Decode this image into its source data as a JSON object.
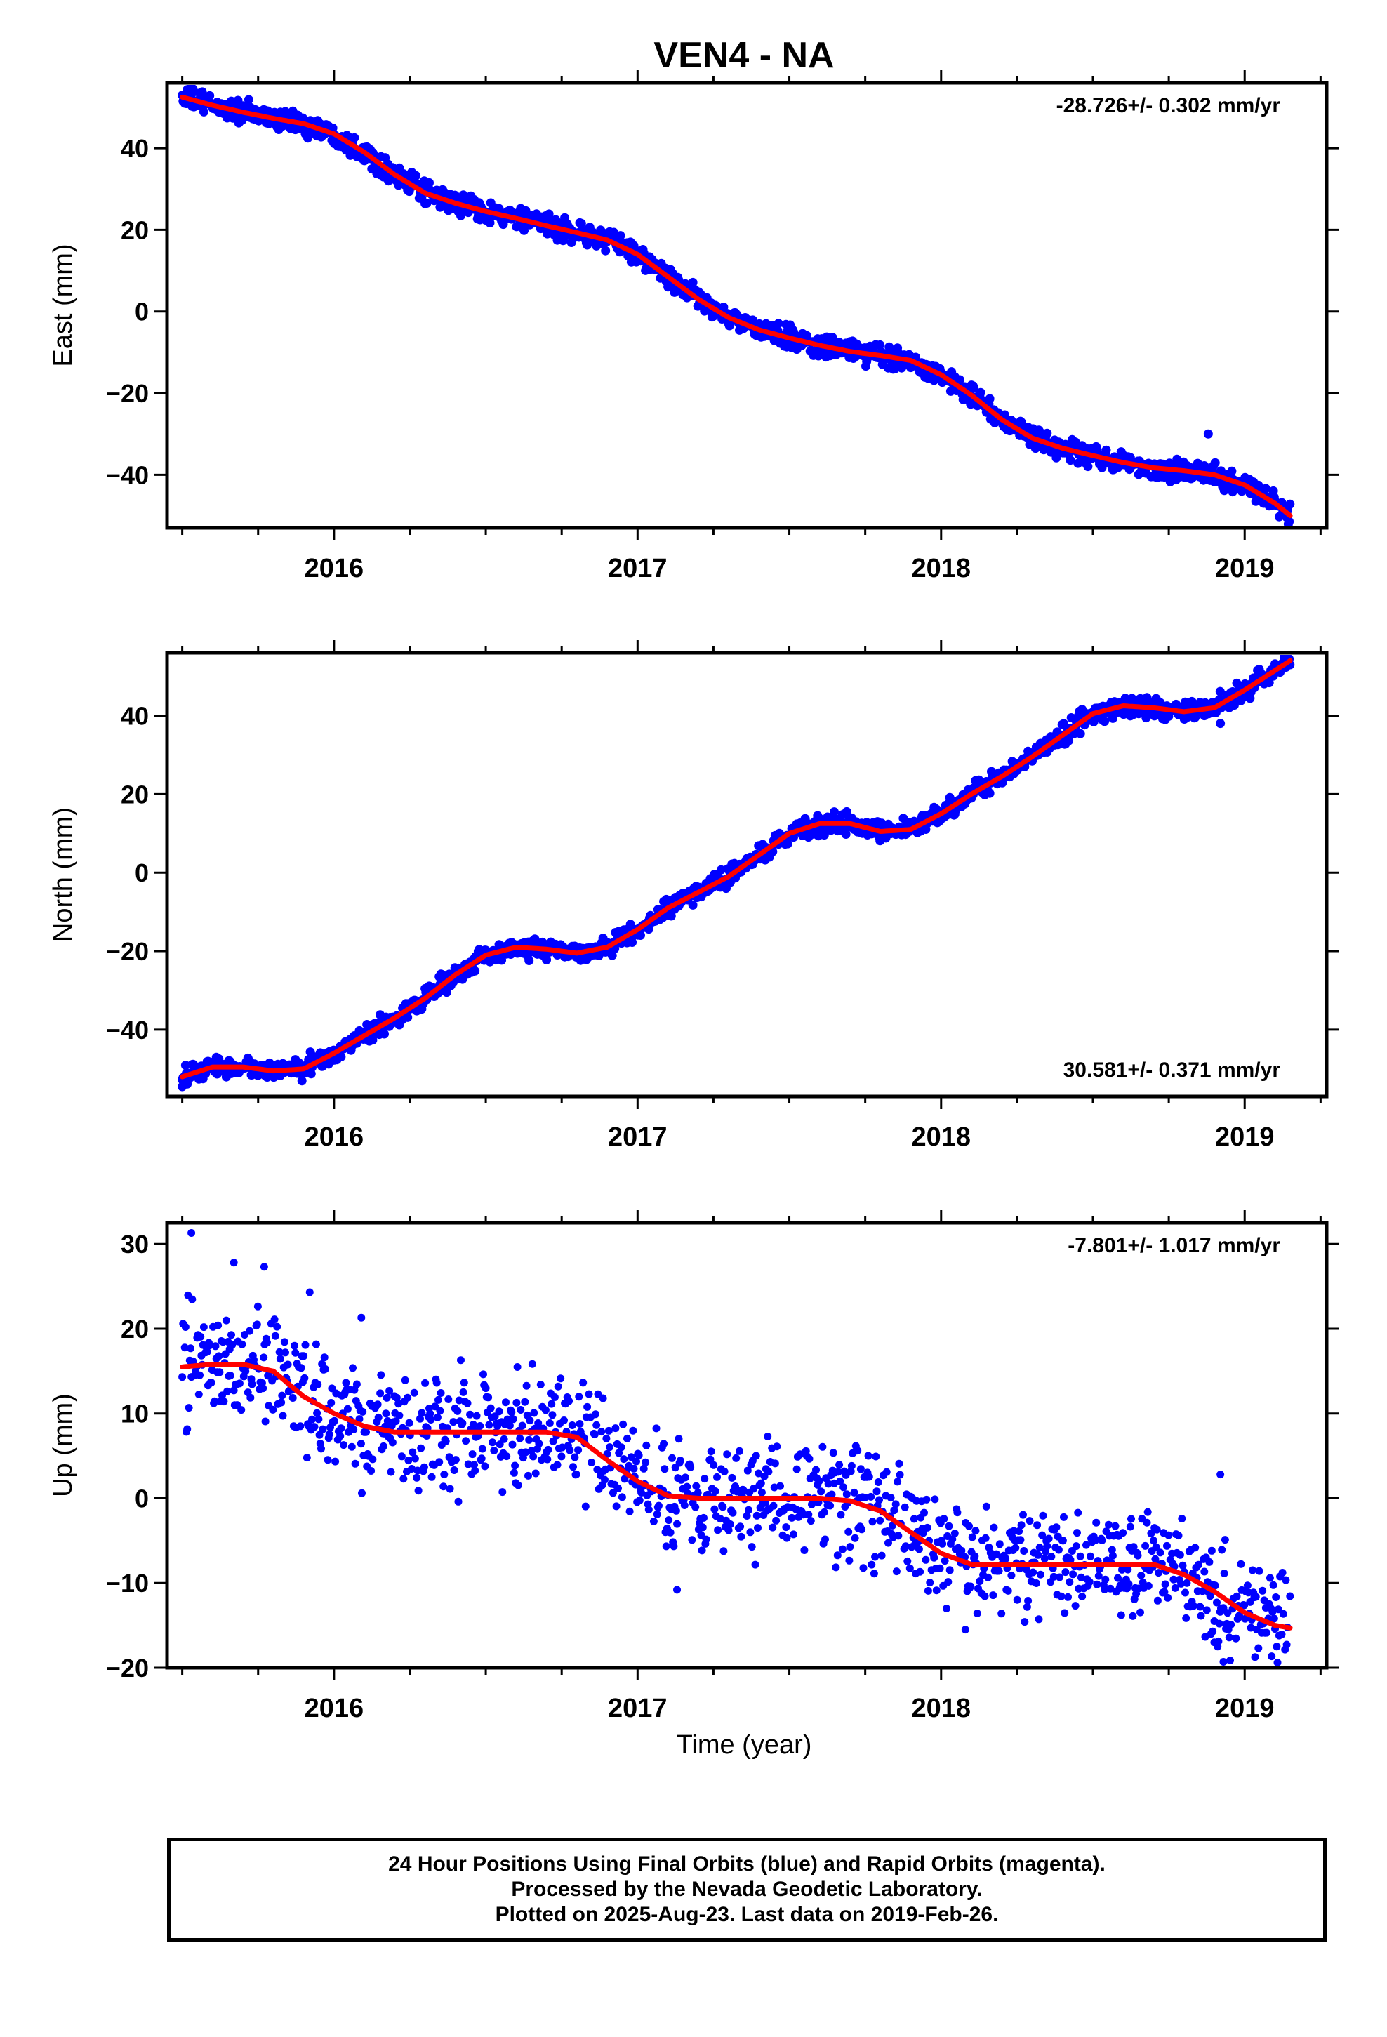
{
  "title": "VEN4 - NA",
  "xlabel": "Time (year)",
  "footer": {
    "line1": "24 Hour Positions Using Final Orbits (blue) and Rapid Orbits (magenta).",
    "line2": "Processed by the Nevada Geodetic Laboratory.",
    "line3": "Plotted on 2025-Aug-23. Last data on 2019-Feb-26."
  },
  "colors": {
    "points": "#0000ff",
    "fit": "#ff0000",
    "axes": "#000000"
  },
  "chart_data": [
    {
      "type": "scatter",
      "ylabel": "East (mm)",
      "rate_label": "-28.726+/- 0.302 mm/yr",
      "rate_position": "top-right",
      "xlim": [
        2015.45,
        2019.27
      ],
      "ylim": [
        -53,
        56
      ],
      "xticks": [
        2016,
        2017,
        2018,
        2019
      ],
      "yticks": [
        -40,
        -20,
        0,
        20,
        40
      ],
      "grid": false,
      "noise": 1.3,
      "x_range": [
        2015.5,
        2019.15
      ],
      "fit": [
        [
          2015.5,
          52.5
        ],
        [
          2015.6,
          50.5
        ],
        [
          2015.7,
          48.8
        ],
        [
          2015.8,
          47.3
        ],
        [
          2015.9,
          46.0
        ],
        [
          2016.0,
          43.5
        ],
        [
          2016.1,
          39.0
        ],
        [
          2016.2,
          33.5
        ],
        [
          2016.3,
          29.0
        ],
        [
          2016.4,
          26.5
        ],
        [
          2016.5,
          24.5
        ],
        [
          2016.6,
          22.8
        ],
        [
          2016.7,
          21.0
        ],
        [
          2016.8,
          19.3
        ],
        [
          2016.9,
          17.5
        ],
        [
          2017.0,
          14.0
        ],
        [
          2017.1,
          8.5
        ],
        [
          2017.2,
          3.0
        ],
        [
          2017.3,
          -1.5
        ],
        [
          2017.4,
          -4.5
        ],
        [
          2017.5,
          -6.5
        ],
        [
          2017.6,
          -8.3
        ],
        [
          2017.7,
          -9.8
        ],
        [
          2017.8,
          -10.8
        ],
        [
          2017.9,
          -12.0
        ],
        [
          2018.0,
          -15.5
        ],
        [
          2018.1,
          -20.5
        ],
        [
          2018.2,
          -26.5
        ],
        [
          2018.3,
          -31.0
        ],
        [
          2018.4,
          -33.5
        ],
        [
          2018.5,
          -35.3
        ],
        [
          2018.6,
          -37.0
        ],
        [
          2018.7,
          -38.3
        ],
        [
          2018.8,
          -39.0
        ],
        [
          2018.9,
          -40.0
        ],
        [
          2019.0,
          -42.5
        ],
        [
          2019.1,
          -47.0
        ],
        [
          2019.15,
          -50.0
        ]
      ],
      "outliers": [
        [
          2018.88,
          -30.0
        ]
      ]
    },
    {
      "type": "scatter",
      "ylabel": "North (mm)",
      "rate_label": "30.581+/- 0.371 mm/yr",
      "rate_position": "bottom-right",
      "xlim": [
        2015.45,
        2019.27
      ],
      "ylim": [
        -57,
        56
      ],
      "xticks": [
        2016,
        2017,
        2018,
        2019
      ],
      "yticks": [
        -40,
        -20,
        0,
        20,
        40
      ],
      "grid": false,
      "noise": 1.2,
      "x_range": [
        2015.5,
        2019.15
      ],
      "fit": [
        [
          2015.5,
          -52.0
        ],
        [
          2015.6,
          -49.5
        ],
        [
          2015.7,
          -49.5
        ],
        [
          2015.8,
          -50.5
        ],
        [
          2015.9,
          -50.0
        ],
        [
          2016.0,
          -46.0
        ],
        [
          2016.1,
          -41.5
        ],
        [
          2016.2,
          -37.0
        ],
        [
          2016.3,
          -32.0
        ],
        [
          2016.4,
          -26.0
        ],
        [
          2016.5,
          -21.0
        ],
        [
          2016.6,
          -19.0
        ],
        [
          2016.7,
          -19.5
        ],
        [
          2016.8,
          -20.5
        ],
        [
          2016.9,
          -19.0
        ],
        [
          2017.0,
          -14.5
        ],
        [
          2017.1,
          -9.0
        ],
        [
          2017.2,
          -5.0
        ],
        [
          2017.3,
          -1.0
        ],
        [
          2017.4,
          4.5
        ],
        [
          2017.5,
          10.0
        ],
        [
          2017.6,
          12.5
        ],
        [
          2017.7,
          12.5
        ],
        [
          2017.8,
          10.5
        ],
        [
          2017.9,
          11.0
        ],
        [
          2018.0,
          15.0
        ],
        [
          2018.1,
          20.0
        ],
        [
          2018.2,
          24.5
        ],
        [
          2018.3,
          29.5
        ],
        [
          2018.4,
          35.0
        ],
        [
          2018.5,
          40.5
        ],
        [
          2018.6,
          42.5
        ],
        [
          2018.7,
          42.0
        ],
        [
          2018.8,
          41.0
        ],
        [
          2018.9,
          42.0
        ],
        [
          2019.0,
          46.5
        ],
        [
          2019.1,
          51.5
        ],
        [
          2019.15,
          54.0
        ]
      ],
      "outliers": [
        [
          2018.92,
          38.0
        ],
        [
          2015.5,
          -54.5
        ]
      ]
    },
    {
      "type": "scatter",
      "ylabel": "Up (mm)",
      "rate_label": "-7.801+/- 1.017 mm/yr",
      "rate_position": "top-right",
      "xlim": [
        2015.45,
        2019.27
      ],
      "ylim": [
        -20,
        32.5
      ],
      "xticks": [
        2016,
        2017,
        2018,
        2019
      ],
      "yticks": [
        -20,
        -10,
        0,
        10,
        20,
        30
      ],
      "grid": false,
      "noise": 3.2,
      "x_range": [
        2015.5,
        2019.15
      ],
      "fit": [
        [
          2015.5,
          15.5
        ],
        [
          2015.6,
          15.8
        ],
        [
          2015.7,
          15.8
        ],
        [
          2015.8,
          15.0
        ],
        [
          2015.9,
          12.0
        ],
        [
          2016.0,
          10.0
        ],
        [
          2016.1,
          8.5
        ],
        [
          2016.2,
          7.8
        ],
        [
          2016.3,
          7.8
        ],
        [
          2016.4,
          7.8
        ],
        [
          2016.5,
          7.8
        ],
        [
          2016.6,
          7.8
        ],
        [
          2016.7,
          7.8
        ],
        [
          2016.8,
          7.2
        ],
        [
          2016.9,
          4.5
        ],
        [
          2017.0,
          2.0
        ],
        [
          2017.1,
          0.3
        ],
        [
          2017.2,
          0.0
        ],
        [
          2017.3,
          0.0
        ],
        [
          2017.4,
          0.0
        ],
        [
          2017.5,
          0.0
        ],
        [
          2017.6,
          0.0
        ],
        [
          2017.7,
          -0.3
        ],
        [
          2017.8,
          -1.5
        ],
        [
          2017.9,
          -4.0
        ],
        [
          2018.0,
          -6.5
        ],
        [
          2018.1,
          -7.8
        ],
        [
          2018.2,
          -7.8
        ],
        [
          2018.3,
          -7.8
        ],
        [
          2018.4,
          -7.8
        ],
        [
          2018.5,
          -7.8
        ],
        [
          2018.6,
          -7.8
        ],
        [
          2018.7,
          -7.8
        ],
        [
          2018.8,
          -9.0
        ],
        [
          2018.9,
          -11.0
        ],
        [
          2019.0,
          -13.5
        ],
        [
          2019.1,
          -15.0
        ],
        [
          2019.15,
          -15.3
        ]
      ],
      "outliers": [
        [
          2015.53,
          31.3
        ],
        [
          2015.67,
          27.8
        ],
        [
          2015.77,
          27.3
        ],
        [
          2015.92,
          24.3
        ],
        [
          2016.09,
          21.3
        ],
        [
          2017.13,
          -10.8
        ],
        [
          2018.08,
          -15.5
        ],
        [
          2018.92,
          2.8
        ],
        [
          2018.93,
          -19.3
        ],
        [
          2018.9,
          -17.0
        ]
      ]
    }
  ]
}
